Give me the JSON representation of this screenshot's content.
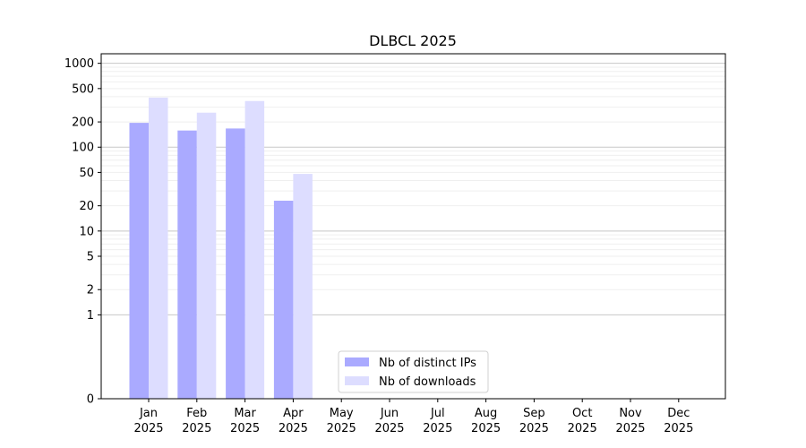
{
  "chart_data": {
    "type": "bar",
    "title": "DLBCL 2025",
    "xlabel": "",
    "ylabel": "",
    "y_scale": "symlog",
    "ylim": [
      0,
      1300
    ],
    "yticks": [
      0,
      1,
      2,
      5,
      10,
      20,
      50,
      100,
      200,
      500,
      1000
    ],
    "ytick_labels": [
      "0",
      "1",
      "2",
      "5",
      "10",
      "20",
      "50",
      "100",
      "200",
      "500",
      "1000"
    ],
    "grid": true,
    "legend_position": "bottom-center",
    "categories": [
      {
        "month": "Jan",
        "year": "2025"
      },
      {
        "month": "Feb",
        "year": "2025"
      },
      {
        "month": "Mar",
        "year": "2025"
      },
      {
        "month": "Apr",
        "year": "2025"
      },
      {
        "month": "May",
        "year": "2025"
      },
      {
        "month": "Jun",
        "year": "2025"
      },
      {
        "month": "Jul",
        "year": "2025"
      },
      {
        "month": "Aug",
        "year": "2025"
      },
      {
        "month": "Sep",
        "year": "2025"
      },
      {
        "month": "Oct",
        "year": "2025"
      },
      {
        "month": "Nov",
        "year": "2025"
      },
      {
        "month": "Dec",
        "year": "2025"
      }
    ],
    "series": [
      {
        "name": "Nb of distinct IPs",
        "color": "#aaaaff",
        "values": [
          195,
          158,
          167,
          23,
          null,
          null,
          null,
          null,
          null,
          null,
          null,
          null
        ]
      },
      {
        "name": "Nb of downloads",
        "color": "#ddddff",
        "values": [
          390,
          258,
          355,
          48,
          null,
          null,
          null,
          null,
          null,
          null,
          null,
          null
        ]
      }
    ]
  }
}
